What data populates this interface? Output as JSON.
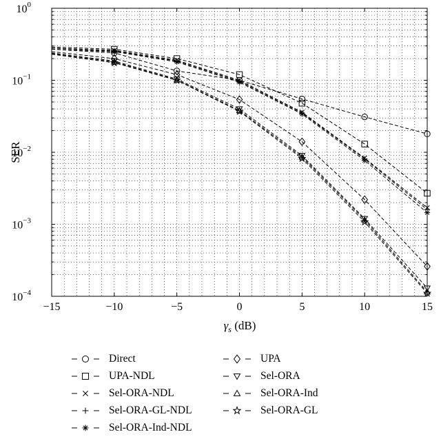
{
  "chart_data": {
    "type": "line",
    "xlabel_symbol": "γ",
    "xlabel_subscript": "s",
    "xlabel_unit": " (dB)",
    "ylabel": "SER",
    "y_scale": "log",
    "grid": true,
    "xlim": [
      -15,
      15
    ],
    "ylim": [
      0.0001,
      1
    ],
    "x_ticks": [
      "−15",
      "−10",
      "−5",
      "0",
      "5",
      "10",
      "15"
    ],
    "y_ticks": [
      {
        "base": "10",
        "exp": "0"
      },
      {
        "base": "10",
        "exp": "−1"
      },
      {
        "base": "10",
        "exp": "−2"
      },
      {
        "base": "10",
        "exp": "−3"
      },
      {
        "base": "10",
        "exp": "−4"
      }
    ],
    "legend_placement": "bottom",
    "x": [
      -15,
      -10,
      -5,
      0,
      5,
      10,
      15
    ],
    "series": [
      {
        "name": "Direct",
        "marker": "circle",
        "values": [
          0.27,
          0.24,
          0.135,
          0.1,
          0.055,
          0.031,
          0.018
        ]
      },
      {
        "name": "UPA-NDL",
        "marker": "square",
        "values": [
          0.29,
          0.27,
          0.2,
          0.12,
          0.048,
          0.013,
          0.0027
        ]
      },
      {
        "name": "Sel-ORA-NDL",
        "marker": "x",
        "values": [
          0.28,
          0.26,
          0.19,
          0.1,
          0.036,
          0.0083,
          0.0017
        ]
      },
      {
        "name": "Sel-ORA-GL-NDL",
        "marker": "plus",
        "values": [
          0.28,
          0.255,
          0.185,
          0.097,
          0.035,
          0.0081,
          0.0016
        ]
      },
      {
        "name": "Sel-ORA-Ind-NDL",
        "marker": "asterisk",
        "values": [
          0.27,
          0.25,
          0.18,
          0.094,
          0.034,
          0.0077,
          0.00145
        ]
      },
      {
        "name": "UPA",
        "marker": "diamond",
        "values": [
          0.25,
          0.2,
          0.12,
          0.054,
          0.014,
          0.0022,
          0.00026
        ]
      },
      {
        "name": "Sel-ORA",
        "marker": "triangle-down",
        "values": [
          0.24,
          0.185,
          0.104,
          0.04,
          0.009,
          0.0012,
          0.00013
        ]
      },
      {
        "name": "Sel-ORA-Ind",
        "marker": "triangle-up",
        "values": [
          0.235,
          0.18,
          0.101,
          0.038,
          0.0086,
          0.00115,
          0.000115
        ]
      },
      {
        "name": "Sel-ORA-GL",
        "marker": "star",
        "values": [
          0.23,
          0.175,
          0.1,
          0.037,
          0.0082,
          0.00108,
          0.00011
        ]
      }
    ]
  }
}
